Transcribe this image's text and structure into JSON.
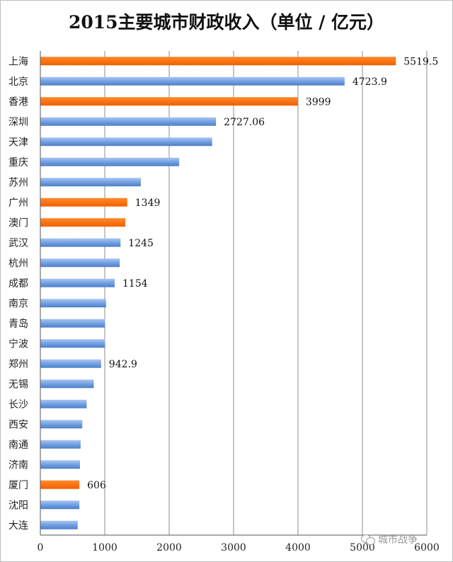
{
  "chart_data": {
    "type": "bar",
    "orientation": "horizontal",
    "title": "2015主要城市财政收入（单位 / 亿元）",
    "xlim": [
      0,
      6000
    ],
    "x_ticks": [
      "0",
      "1000",
      "2000",
      "3000",
      "4000",
      "5000",
      "6000"
    ],
    "grid": "vertical",
    "categories": [
      "上海",
      "北京",
      "香港",
      "深圳",
      "天津",
      "重庆",
      "苏州",
      "广州",
      "澳门",
      "武汉",
      "杭州",
      "成都",
      "南京",
      "青岛",
      "宁波",
      "郑州",
      "无锡",
      "长沙",
      "西安",
      "南通",
      "济南",
      "厦门",
      "沈阳",
      "大连"
    ],
    "values": [
      5519.5,
      4723.9,
      3999,
      2727.06,
      2667,
      2155,
      1560,
      1349,
      1320,
      1245,
      1233,
      1154,
      1020,
      1006,
      1006,
      942.9,
      830,
      720,
      651,
      625,
      615,
      606,
      606,
      580
    ],
    "data_labels": [
      "5519.5",
      "4723.9",
      "3999",
      "2727.06",
      "",
      "",
      "",
      "1349",
      "",
      "1245",
      "",
      "1154",
      "",
      "",
      "",
      "942.9",
      "",
      "",
      "",
      "",
      "",
      "606",
      "",
      ""
    ],
    "highlighted": [
      true,
      false,
      true,
      false,
      false,
      false,
      false,
      true,
      true,
      false,
      false,
      false,
      false,
      false,
      false,
      false,
      false,
      false,
      false,
      false,
      false,
      true,
      false,
      false
    ],
    "colors": {
      "highlight": "#ff6a00",
      "normal": "#6f9de0",
      "grid": "#8c8c8c"
    }
  },
  "watermark": {
    "text": "城市战争",
    "icon": "wechat-icon"
  }
}
